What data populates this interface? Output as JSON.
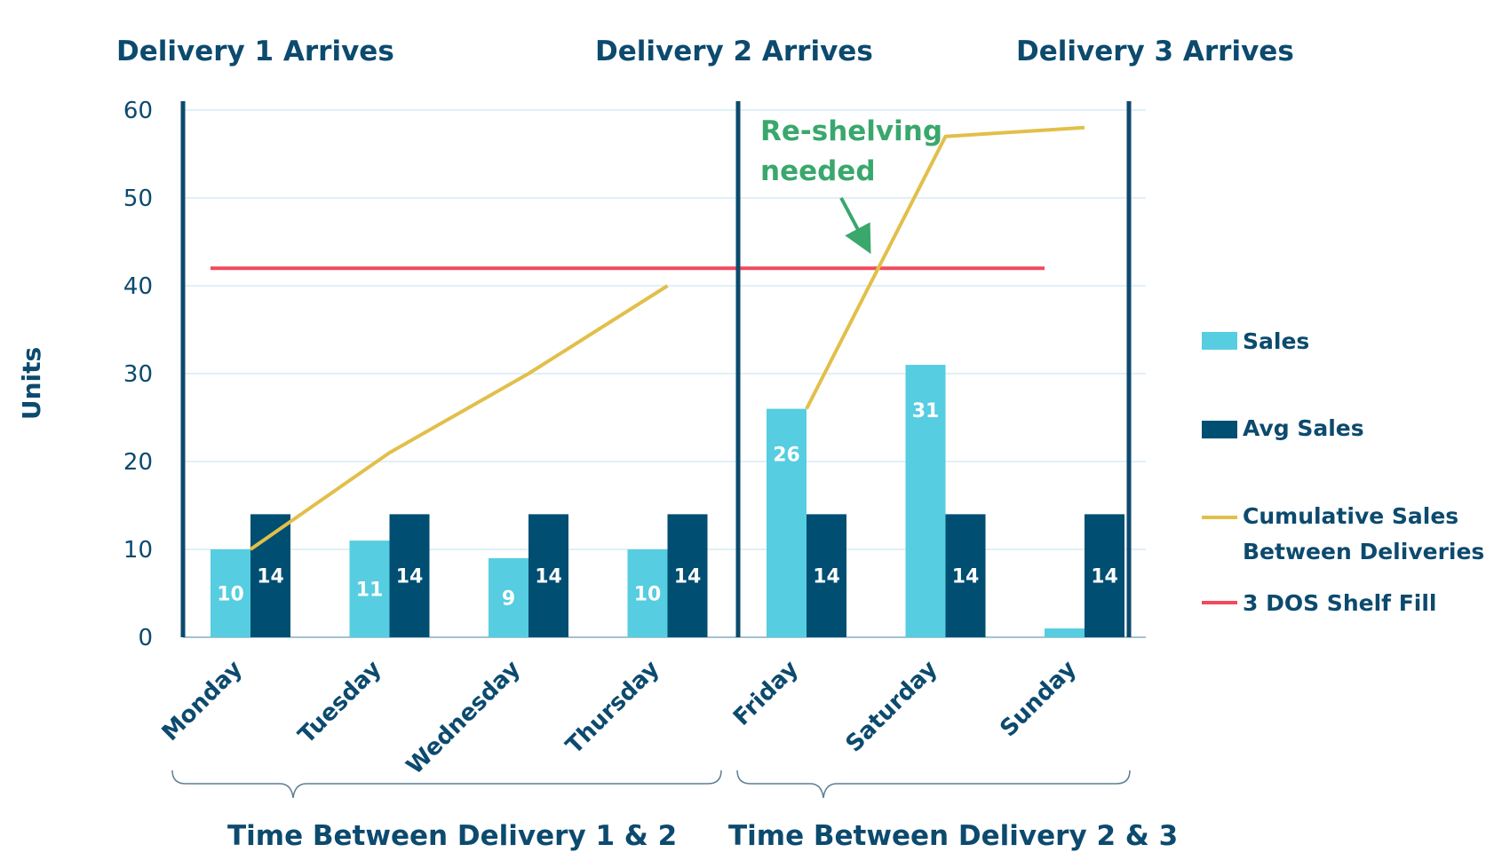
{
  "chart_data": {
    "type": "bar",
    "categories": [
      "Monday",
      "Tuesday",
      "Wednesday",
      "Thursday",
      "Friday",
      "Saturday",
      "Sunday"
    ],
    "series": [
      {
        "name": "Sales",
        "type": "bar",
        "values": [
          10,
          11,
          9,
          10,
          26,
          31,
          1
        ],
        "labels": [
          "10",
          "11",
          "9",
          "10",
          "26",
          "31",
          ""
        ]
      },
      {
        "name": "Avg Sales",
        "type": "bar",
        "values": [
          14,
          14,
          14,
          14,
          14,
          14,
          14
        ],
        "labels": [
          "14",
          "14",
          "14",
          "14",
          "14",
          "14",
          "14"
        ]
      },
      {
        "name": "Cumulative Sales Between Deliveries",
        "type": "line",
        "segments": [
          {
            "categories": [
              "Monday",
              "Tuesday",
              "Wednesday",
              "Thursday"
            ],
            "values": [
              10,
              21,
              30,
              40
            ]
          },
          {
            "categories": [
              "Friday",
              "Saturday",
              "Sunday"
            ],
            "values": [
              26,
              57,
              58
            ]
          }
        ]
      },
      {
        "name": "3 DOS Shelf Fill",
        "type": "hline",
        "value": 42,
        "from": "Monday",
        "to": "Sunday"
      }
    ],
    "ylabel": "Units",
    "ylim": [
      0,
      60
    ],
    "yticks": [
      0,
      10,
      20,
      30,
      40,
      50,
      60
    ],
    "grid": true,
    "legend_position": "right",
    "legend": {
      "sales": "Sales",
      "avg": "Avg Sales",
      "cum_line1": "Cumulative Sales",
      "cum_line2": "Between Deliveries",
      "shelf": "3 DOS Shelf Fill"
    },
    "deliveries": [
      "Delivery 1 Arrives",
      "Delivery 2 Arrives",
      "Delivery 3 Arrives"
    ],
    "annotation": {
      "line1": "Re-shelving",
      "line2": "needed"
    },
    "periods": [
      "Time Between Delivery 1 & 2",
      "Time Between Delivery 2 & 3"
    ],
    "colors": {
      "sales": "#56cde0",
      "avg": "#004e72",
      "cumulative": "#e2bf4a",
      "shelf": "#f24a5c",
      "grid": "#d6ecf5",
      "text": "#0c4a6e",
      "divider": "#0c4a6e",
      "note": "#3aa76d",
      "brace": "#5d7f92"
    }
  }
}
